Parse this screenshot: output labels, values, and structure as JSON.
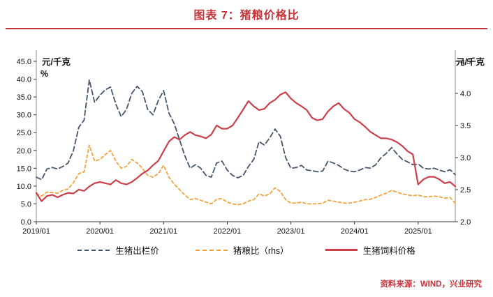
{
  "header": {
    "title": "图表 7：猪粮价格比"
  },
  "footer": {
    "source": "资料来源：WIND，兴业研究"
  },
  "theme": {
    "accent_red": "#C5333B"
  },
  "chart_data": {
    "type": "line",
    "title": "图表 7：猪粮价格比",
    "left_axis": {
      "unit": "元/千克",
      "unit2": "%",
      "min": 0,
      "max": 45,
      "ticks": [
        "0.0",
        "5.0",
        "10.0",
        "15.0",
        "20.0",
        "25.0",
        "30.0",
        "35.0",
        "40.0",
        "45.0"
      ]
    },
    "right_axis": {
      "unit": "元/千克",
      "min": 2.0,
      "max": 4.5,
      "ticks": [
        "2.0",
        "2.5",
        "3.0",
        "3.5",
        "4.0",
        "4.5"
      ]
    },
    "x_ticks": [
      {
        "index": 0,
        "label": "2019/01"
      },
      {
        "index": 12,
        "label": "2020/01"
      },
      {
        "index": 24,
        "label": "2021/01"
      },
      {
        "index": 36,
        "label": "2022/01"
      },
      {
        "index": 48,
        "label": "2023/01"
      },
      {
        "index": 60,
        "label": "2024/01"
      },
      {
        "index": 72,
        "label": "2025/01"
      }
    ],
    "x_frequency": "monthly",
    "x_range": [
      "2019/01",
      "2025/08"
    ],
    "legend_position": "bottom",
    "grid": false,
    "series": [
      {
        "name": "生猪出栏价",
        "axis": "left",
        "color": "#44546A",
        "dash": "7 4",
        "width": 1.8,
        "values": [
          12.5,
          11.8,
          14.8,
          15.2,
          14.8,
          15.5,
          16.5,
          20.0,
          26.5,
          28.5,
          39.8,
          33.5,
          35.5,
          37.0,
          37.8,
          33.0,
          29.5,
          31.5,
          36.0,
          38.0,
          36.5,
          31.5,
          30.0,
          34.0,
          36.8,
          30.5,
          27.5,
          23.0,
          18.5,
          15.0,
          16.0,
          15.0,
          13.0,
          12.5,
          16.5,
          17.0,
          14.5,
          13.0,
          12.3,
          13.0,
          15.5,
          17.5,
          22.5,
          21.5,
          23.5,
          26.0,
          24.0,
          18.0,
          15.0,
          15.2,
          15.8,
          14.5,
          14.3,
          14.0,
          14.2,
          17.0,
          16.5,
          15.8,
          14.8,
          14.2,
          14.0,
          14.5,
          15.2,
          15.0,
          16.0,
          18.0,
          19.2,
          20.8,
          19.0,
          17.5,
          16.8,
          16.0,
          16.2,
          15.0,
          14.8,
          15.0,
          14.5,
          14.0,
          14.6,
          13.2
        ]
      },
      {
        "name": "猪粮比（rhs）",
        "axis": "left",
        "color": "#F2A33C",
        "dash": "4 3.5",
        "width": 1.8,
        "values": [
          7.8,
          7.2,
          8.3,
          8.2,
          8.0,
          8.8,
          9.2,
          11.0,
          13.5,
          14.0,
          21.5,
          17.0,
          17.5,
          18.8,
          20.0,
          17.0,
          15.0,
          15.5,
          17.5,
          16.5,
          15.0,
          13.0,
          12.5,
          13.5,
          15.8,
          12.5,
          10.5,
          9.0,
          7.5,
          6.2,
          6.5,
          6.0,
          5.5,
          5.0,
          6.3,
          6.5,
          5.5,
          5.0,
          4.8,
          5.0,
          5.8,
          6.2,
          7.8,
          7.2,
          7.8,
          9.5,
          8.5,
          6.2,
          5.2,
          5.2,
          5.5,
          5.0,
          5.0,
          5.0,
          5.2,
          6.0,
          5.8,
          5.5,
          5.2,
          5.2,
          5.5,
          5.8,
          6.2,
          6.3,
          6.8,
          7.5,
          8.0,
          8.8,
          8.3,
          7.8,
          7.5,
          7.3,
          7.5,
          7.0,
          7.0,
          7.2,
          7.0,
          6.6,
          6.8,
          5.2
        ]
      },
      {
        "name": "生猪饲料价格",
        "axis": "right",
        "color": "#C9404A",
        "dash": null,
        "width": 2.2,
        "values": [
          2.45,
          2.32,
          2.4,
          2.42,
          2.38,
          2.42,
          2.45,
          2.44,
          2.5,
          2.48,
          2.55,
          2.6,
          2.62,
          2.6,
          2.58,
          2.65,
          2.6,
          2.58,
          2.62,
          2.68,
          2.75,
          2.8,
          2.88,
          2.95,
          3.1,
          3.25,
          3.32,
          3.28,
          3.35,
          3.4,
          3.35,
          3.33,
          3.3,
          3.36,
          3.5,
          3.45,
          3.45,
          3.5,
          3.62,
          3.75,
          3.88,
          3.8,
          3.74,
          3.76,
          3.85,
          3.9,
          3.98,
          4.02,
          3.92,
          3.85,
          3.8,
          3.74,
          3.62,
          3.58,
          3.6,
          3.72,
          3.8,
          3.85,
          3.76,
          3.7,
          3.6,
          3.55,
          3.48,
          3.4,
          3.35,
          3.3,
          3.3,
          3.28,
          3.24,
          3.18,
          3.1,
          3.05,
          2.58,
          2.66,
          2.7,
          2.7,
          2.66,
          2.6,
          2.62,
          2.55
        ]
      }
    ]
  }
}
